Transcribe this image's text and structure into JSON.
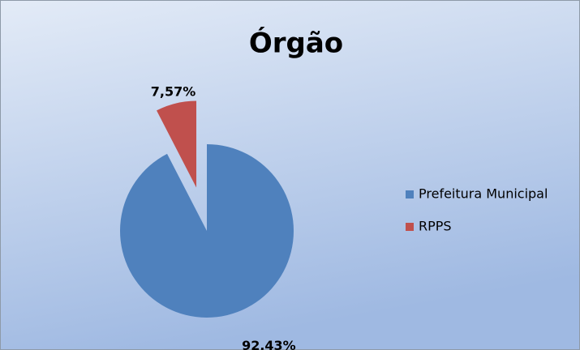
{
  "chart_data": {
    "type": "pie",
    "title": "Órgão",
    "categories": [
      "Prefeitura Municipal",
      "RPPS"
    ],
    "values": [
      92.43,
      7.57
    ],
    "value_labels": [
      "92,43%",
      "7,57%"
    ],
    "colors": [
      "#4f81bd",
      "#c0504d"
    ],
    "legend": "right"
  }
}
